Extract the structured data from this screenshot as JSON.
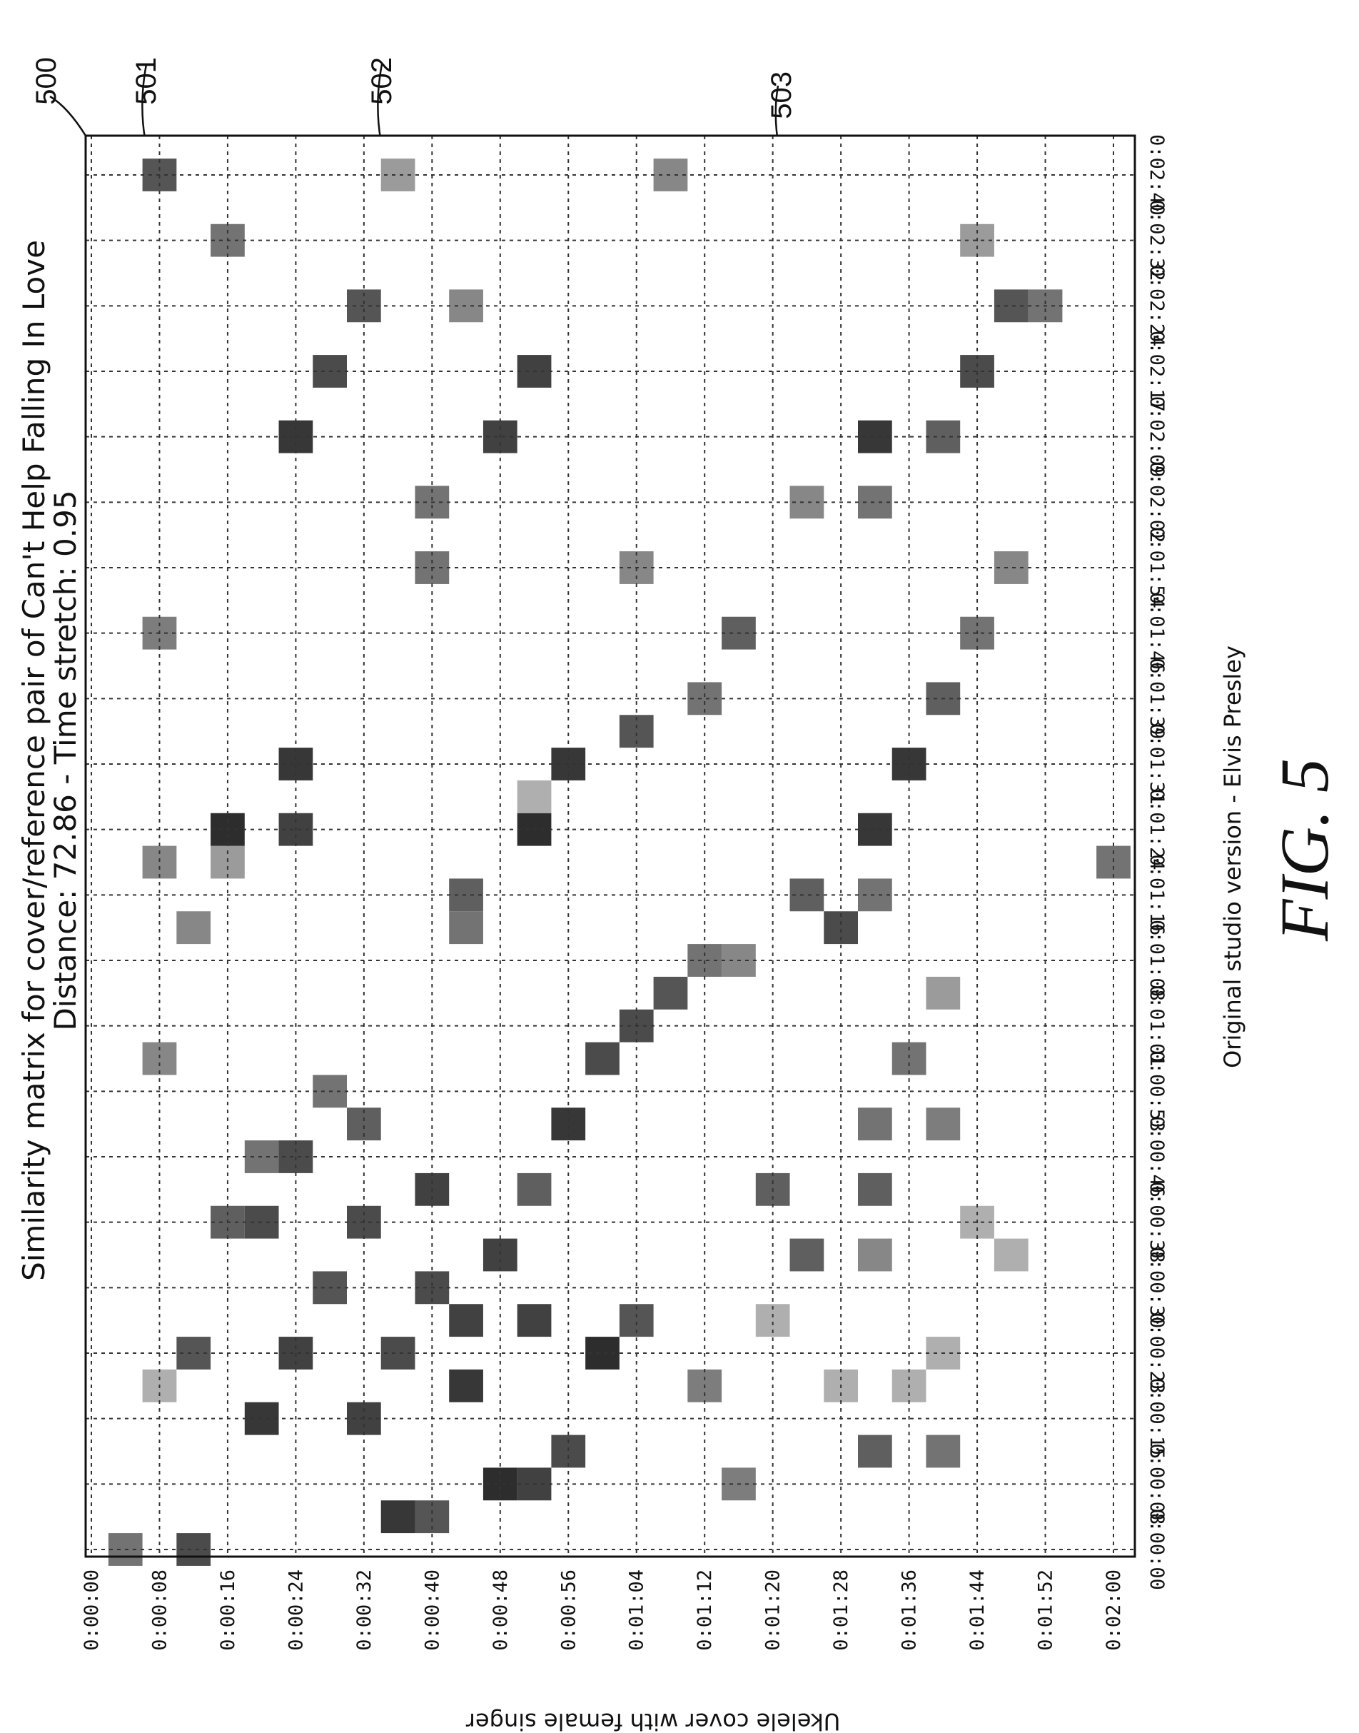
{
  "figure_label": "FIG. 5",
  "refs": {
    "r500": "500",
    "r501": "501",
    "r502": "502",
    "r503": "503"
  },
  "chart_data": {
    "type": "heatmap",
    "title_line1": "Similarity matrix for cover/reference pair of Can't Help Falling In Love",
    "title_line2": "Distance: 72.86 - Time stretch: 0.95",
    "xlabel": "Original studio version - Elvis Presley",
    "ylabel": "Ukelele cover with female singer",
    "x_ticks": [
      "0:00:00",
      "0:00:08",
      "0:00:15",
      "0:00:23",
      "0:00:30",
      "0:00:38",
      "0:00:46",
      "0:00:53",
      "0:01:01",
      "0:01:08",
      "0:01:16",
      "0:01:24",
      "0:01:31",
      "0:01:39",
      "0:01:46",
      "0:01:54",
      "0:02:02",
      "0:02:09",
      "0:02:17",
      "0:02:24",
      "0:02:32",
      "0:02:40"
    ],
    "y_ticks": [
      "0:00:00",
      "0:00:08",
      "0:00:16",
      "0:00:24",
      "0:00:32",
      "0:00:40",
      "0:00:48",
      "0:00:56",
      "0:01:04",
      "0:01:12",
      "0:01:20",
      "0:01:28",
      "0:01:36",
      "0:01:44",
      "0:01:52",
      "0:02:00"
    ],
    "x_unit_seconds": 7.65,
    "y_unit_seconds": 8,
    "grid": true,
    "description_of_cells": "cells: [x_index_in_cell_units (0 = 0:00:00, 21 = 0:02:40), y_index_in_cell_units (0 = 0:00:00, 15 = 0:02:00), similarity 0..1]",
    "cells": [
      [
        0,
        0.5,
        0.6
      ],
      [
        0,
        1.5,
        0.8
      ],
      [
        0.5,
        4.5,
        0.9
      ],
      [
        0.5,
        5,
        0.75
      ],
      [
        1,
        6,
        0.95
      ],
      [
        1,
        6.5,
        0.85
      ],
      [
        1.5,
        7,
        0.8
      ],
      [
        1,
        9.5,
        0.55
      ],
      [
        1.5,
        11.5,
        0.7
      ],
      [
        1.5,
        12.5,
        0.6
      ],
      [
        2,
        2.5,
        0.9
      ],
      [
        2.5,
        1,
        0.3
      ],
      [
        2,
        4,
        0.85
      ],
      [
        2.5,
        5.5,
        0.9
      ],
      [
        3,
        7.5,
        0.95
      ],
      [
        2.5,
        9,
        0.55
      ],
      [
        2.5,
        11,
        0.3
      ],
      [
        2.5,
        12,
        0.3
      ],
      [
        3,
        1.5,
        0.75
      ],
      [
        3,
        3,
        0.85
      ],
      [
        3,
        4.5,
        0.8
      ],
      [
        3.5,
        5.5,
        0.85
      ],
      [
        3.5,
        6.5,
        0.85
      ],
      [
        3.5,
        8,
        0.75
      ],
      [
        3.5,
        10,
        0.3
      ],
      [
        3,
        12.5,
        0.3
      ],
      [
        4,
        3.5,
        0.75
      ],
      [
        4,
        5,
        0.8
      ],
      [
        4.5,
        6,
        0.85
      ],
      [
        4.5,
        10.5,
        0.7
      ],
      [
        4.5,
        11.5,
        0.5
      ],
      [
        4.5,
        13.5,
        0.3
      ],
      [
        5,
        2,
        0.7
      ],
      [
        5,
        2.5,
        0.8
      ],
      [
        5,
        4,
        0.8
      ],
      [
        5.5,
        5,
        0.85
      ],
      [
        5.5,
        6.5,
        0.7
      ],
      [
        5.5,
        10,
        0.7
      ],
      [
        5.5,
        11.5,
        0.7
      ],
      [
        5,
        13,
        0.3
      ],
      [
        6,
        2.5,
        0.6
      ],
      [
        6,
        3,
        0.8
      ],
      [
        6.5,
        4,
        0.7
      ],
      [
        6.5,
        7,
        0.9
      ],
      [
        6.5,
        11.5,
        0.6
      ],
      [
        6.5,
        12.5,
        0.55
      ],
      [
        7,
        3.5,
        0.6
      ],
      [
        7.5,
        1,
        0.5
      ],
      [
        7.5,
        7.5,
        0.8
      ],
      [
        7.5,
        12,
        0.6
      ],
      [
        8,
        8,
        0.8
      ],
      [
        8.5,
        8.5,
        0.75
      ],
      [
        8.5,
        12.5,
        0.4
      ],
      [
        9,
        9,
        0.6
      ],
      [
        9,
        9.5,
        0.5
      ],
      [
        9.5,
        1.5,
        0.5
      ],
      [
        9.5,
        5.5,
        0.6
      ],
      [
        9.5,
        11,
        0.8
      ],
      [
        10,
        5.5,
        0.7
      ],
      [
        10,
        10.5,
        0.7
      ],
      [
        10,
        11.5,
        0.6
      ],
      [
        10.5,
        1,
        0.5
      ],
      [
        10.5,
        2,
        0.4
      ],
      [
        10.5,
        15,
        0.6
      ],
      [
        11,
        2,
        0.95
      ],
      [
        11,
        3,
        0.85
      ],
      [
        11,
        6.5,
        0.95
      ],
      [
        11,
        11.5,
        0.9
      ],
      [
        11.5,
        6.5,
        0.3
      ],
      [
        12,
        3,
        0.9
      ],
      [
        12,
        7,
        0.9
      ],
      [
        12,
        12,
        0.9
      ],
      [
        12.5,
        8,
        0.75
      ],
      [
        13,
        12.5,
        0.7
      ],
      [
        13,
        9,
        0.6
      ],
      [
        14,
        9.5,
        0.7
      ],
      [
        14,
        1,
        0.55
      ],
      [
        14,
        13,
        0.6
      ],
      [
        15,
        5,
        0.6
      ],
      [
        15,
        13.5,
        0.5
      ],
      [
        15,
        8,
        0.5
      ],
      [
        16,
        5,
        0.6
      ],
      [
        16,
        10.5,
        0.5
      ],
      [
        16,
        11.5,
        0.6
      ],
      [
        17,
        3,
        0.9
      ],
      [
        17,
        6,
        0.85
      ],
      [
        17,
        11.5,
        0.9
      ],
      [
        17,
        12.5,
        0.7
      ],
      [
        18,
        3.5,
        0.8
      ],
      [
        18,
        6.5,
        0.85
      ],
      [
        18,
        13,
        0.8
      ],
      [
        19,
        4,
        0.75
      ],
      [
        19,
        5.5,
        0.5
      ],
      [
        19,
        13.5,
        0.75
      ],
      [
        19,
        14,
        0.6
      ],
      [
        20,
        2,
        0.6
      ],
      [
        20,
        13,
        0.4
      ],
      [
        21,
        1,
        0.75
      ],
      [
        21,
        4.5,
        0.4
      ],
      [
        21,
        8.5,
        0.5
      ]
    ]
  }
}
